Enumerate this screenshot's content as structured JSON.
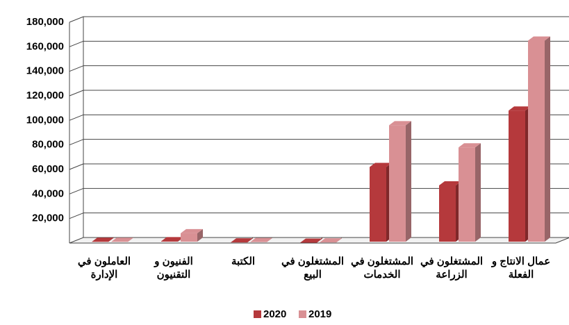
{
  "chart_data": {
    "type": "bar3d",
    "categories": [
      "العاملون في الإدارة",
      "الفنيون و التقنيون",
      "الكتبة",
      "المشتغلون في البيع",
      "المشتغلون في الخدمات",
      "المشتغلون في الزراعة",
      "عمال الانتاج و الفعلة"
    ],
    "series": [
      {
        "name": "2020",
        "color": "#b5393c",
        "values": [
          1000,
          1500,
          500,
          300,
          62000,
          47000,
          108000
        ]
      },
      {
        "name": "2019",
        "color": "#d99094",
        "values": [
          1000,
          8000,
          800,
          500,
          96000,
          78000,
          165000
        ]
      }
    ],
    "ylim": [
      0,
      180000
    ],
    "yticks": [
      {
        "value": 20000,
        "label": "20,000"
      },
      {
        "value": 40000,
        "label": "40,000"
      },
      {
        "value": 60000,
        "label": "60,000"
      },
      {
        "value": 80000,
        "label": "80,000"
      },
      {
        "value": 100000,
        "label": "100,000"
      },
      {
        "value": 120000,
        "label": "120,000"
      },
      {
        "value": 140000,
        "label": "140,000"
      },
      {
        "value": 160000,
        "label": "160,000"
      },
      {
        "value": 180000,
        "label": "180,000"
      }
    ],
    "grid": true,
    "legend": "bottom"
  }
}
